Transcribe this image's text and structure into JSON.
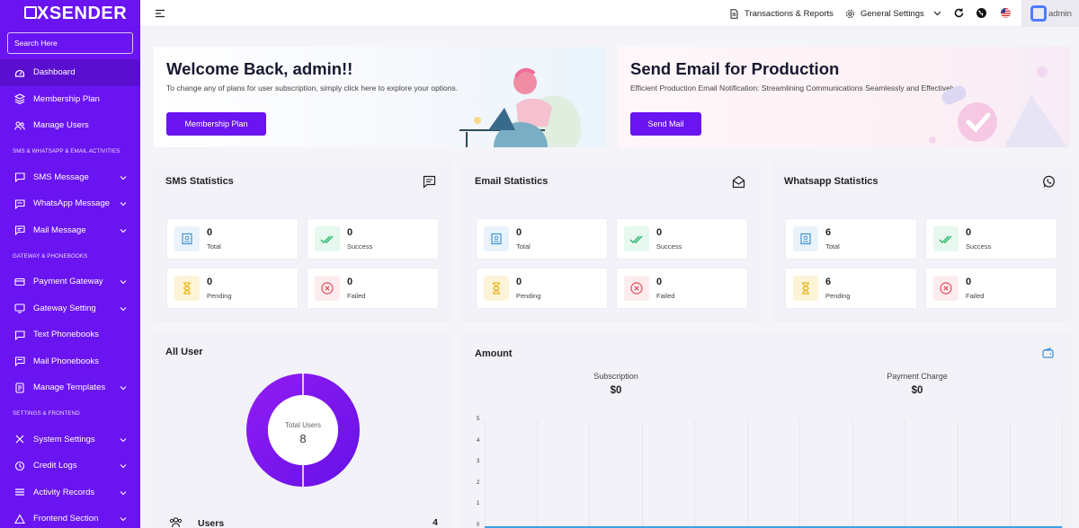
{
  "app": {
    "logo": "XSENDER"
  },
  "search": {
    "placeholder": "Search Here"
  },
  "sidebar": {
    "items": [
      {
        "label": "Dashboard",
        "icon": "dashboard-icon",
        "active": true
      },
      {
        "label": "Membership Plan",
        "icon": "layers-icon"
      },
      {
        "label": "Manage Users",
        "icon": "users-icon"
      }
    ],
    "section1": "SMS & WHATSAPP & EMAIL ACTIVITIES",
    "items2": [
      {
        "label": "SMS Message",
        "icon": "chat-icon"
      },
      {
        "label": "WhatsApp Message",
        "icon": "whatsapp-icon"
      },
      {
        "label": "Mail Message",
        "icon": "mail-icon"
      }
    ],
    "section2": "GATEWAY & PHONEBOOKS",
    "items3": [
      {
        "label": "Payment Gateway",
        "icon": "payment-icon"
      },
      {
        "label": "Gateway Setting",
        "icon": "gateway-icon"
      },
      {
        "label": "Text Phonebooks",
        "icon": "phonebook-icon"
      },
      {
        "label": "Mail Phonebooks",
        "icon": "mailbook-icon"
      },
      {
        "label": "Manage Templates",
        "icon": "template-icon"
      }
    ],
    "section3": "SETTINGS & FRONTEND",
    "items4": [
      {
        "label": "System Settings",
        "icon": "settings-icon"
      },
      {
        "label": "Credit Logs",
        "icon": "credit-icon"
      },
      {
        "label": "Activity Records",
        "icon": "list-icon"
      },
      {
        "label": "Frontend Section",
        "icon": "frontend-icon"
      }
    ]
  },
  "topbar": {
    "transactions": "Transactions & Reports",
    "general_settings": "General Settings",
    "user": "admin"
  },
  "welcome": {
    "title": "Welcome Back, admin!!",
    "text": "To change any of plans for user subscription, simply click here to explore your options.",
    "button": "Membership Plan"
  },
  "send_email": {
    "title": "Send Email for Production",
    "text": "Efficient Production Email Notification: Streamlining Communications Seamlessly and Effectively",
    "button": "Send Mail"
  },
  "stats": [
    {
      "title": "SMS Statistics",
      "total": "0",
      "success": "0",
      "pending": "0",
      "failed": "0"
    },
    {
      "title": "Email Statistics",
      "total": "0",
      "success": "0",
      "pending": "0",
      "failed": "0"
    },
    {
      "title": "Whatsapp Statistics",
      "total": "6",
      "success": "0",
      "pending": "6",
      "failed": "0"
    }
  ],
  "stat_labels": {
    "total": "Total",
    "success": "Success",
    "pending": "Pending",
    "failed": "Failed"
  },
  "all_user": {
    "title": "All User",
    "center_label": "Total Users",
    "center_value": "8",
    "row_label": "Users",
    "row_value": "4"
  },
  "amount": {
    "title": "Amount",
    "subscription_label": "Subscription",
    "subscription_value": "$0",
    "payment_label": "Payment Charge",
    "payment_value": "$0",
    "y_ticks": [
      "5",
      "4",
      "3",
      "2",
      "1",
      "0"
    ]
  },
  "colors": {
    "primary": "#6a14f2",
    "accent": "#7b2cf5"
  }
}
